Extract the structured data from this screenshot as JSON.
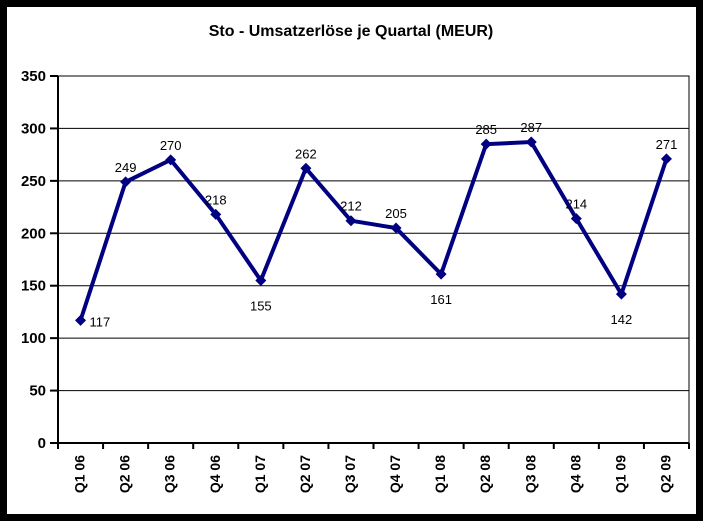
{
  "chart_data": {
    "type": "line",
    "title": "Sto - Umsatzerlöse je Quartal (MEUR)",
    "categories": [
      "Q1 06",
      "Q2 06",
      "Q3 06",
      "Q4 06",
      "Q1 07",
      "Q2 07",
      "Q3 07",
      "Q4 07",
      "Q1 08",
      "Q2 08",
      "Q3 08",
      "Q4 08",
      "Q1 09",
      "Q2 09"
    ],
    "values": [
      117,
      249,
      270,
      218,
      155,
      262,
      212,
      205,
      161,
      285,
      287,
      214,
      142,
      271
    ],
    "data_label_positions": [
      "right",
      "above",
      "above",
      "above",
      "below",
      "above",
      "above",
      "above",
      "below",
      "above",
      "above",
      "above",
      "below",
      "above"
    ],
    "ylim": [
      0,
      350
    ],
    "ytick_step": 50,
    "ytick_labels": [
      "0",
      "50",
      "100",
      "150",
      "200",
      "250",
      "300",
      "350"
    ],
    "grid": true,
    "legend": "none",
    "marker": "diamond",
    "colors": {
      "line": "#000080",
      "marker": "#000080",
      "text": "#000000",
      "gridline": "#000000",
      "axis": "#000000",
      "frame": "#000000",
      "background": "#ffffff"
    }
  }
}
